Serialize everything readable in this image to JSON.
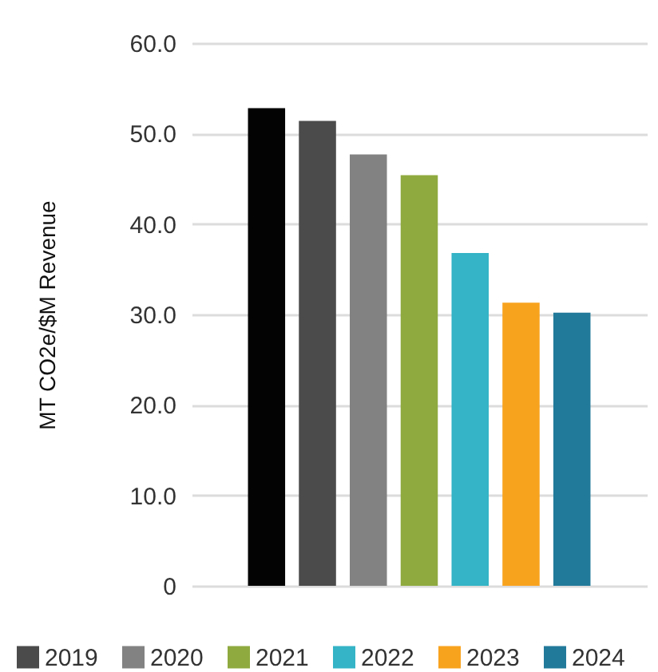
{
  "chart_data": {
    "type": "bar",
    "ylabel": "MT CO2e/$M Revenue",
    "categories": [
      null
    ],
    "series": [
      {
        "color": "#030303",
        "values": [
          52.8
        ]
      },
      {
        "name": "2019",
        "color": "#4b4b4b",
        "values": [
          51.4
        ]
      },
      {
        "name": "2020",
        "color": "#828282",
        "values": [
          47.7
        ]
      },
      {
        "name": "2021",
        "color": "#8faa3f",
        "values": [
          45.4
        ]
      },
      {
        "name": "2022",
        "color": "#34b4c6",
        "values": [
          36.8
        ]
      },
      {
        "name": "2023",
        "color": "#f8a31e",
        "values": [
          31.3
        ]
      },
      {
        "name": "2024",
        "color": "#227a9a",
        "values": [
          30.2
        ]
      }
    ],
    "ylim": [
      0,
      60
    ],
    "yticks": [
      0,
      {
        "value": 10,
        "label": "10.0"
      },
      {
        "value": 20,
        "label": "20.0"
      },
      {
        "value": 30,
        "label": "30.0"
      },
      {
        "value": 40,
        "label": "40.0"
      },
      {
        "value": 50,
        "label": "50.0"
      },
      {
        "value": 60,
        "label": "60.0"
      }
    ],
    "grid": "y",
    "legend": "bottom",
    "tick_labels": "y"
  }
}
